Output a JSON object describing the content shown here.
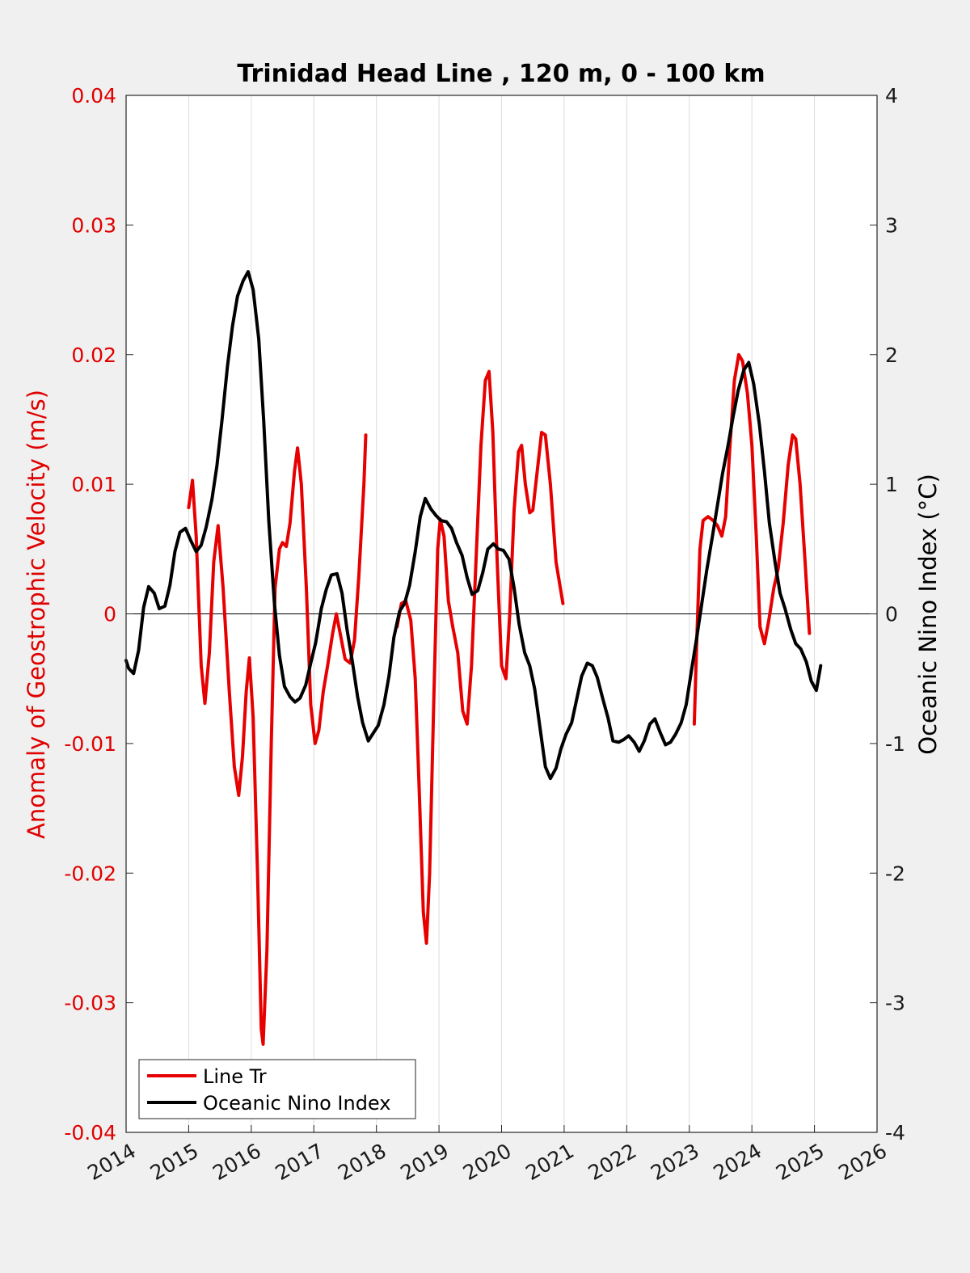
{
  "chart_data": {
    "type": "line",
    "title": "Trinidad Head Line , 120 m, 0 - 100 km",
    "ylabel_left": "Anomaly of Geostrophic Velocity (m/s)",
    "ylabel_right": "Oceanic Nino Index (°C)",
    "x_ticks": [
      "2014",
      "2015",
      "2016",
      "2017",
      "2018",
      "2019",
      "2020",
      "2021",
      "2022",
      "2023",
      "2024",
      "2025",
      "2026"
    ],
    "xlim": [
      2014,
      2026
    ],
    "ylim_left": [
      -0.04,
      0.04
    ],
    "ylim_right": [
      -4,
      4
    ],
    "y_ticks_left": [
      "0.04",
      "0.03",
      "0.02",
      "0.01",
      "0",
      "-0.01",
      "-0.02",
      "-0.03",
      "-0.04"
    ],
    "y_ticks_right": [
      "4",
      "3",
      "2",
      "1",
      "0",
      "-1",
      "-2",
      "-3",
      "-4"
    ],
    "grid": "vertical",
    "legend_position": "bottom-left",
    "colors": {
      "line_tr": "#e60000",
      "oni": "#000000",
      "left_axis": "#e00000"
    },
    "series": [
      {
        "name": "Line Tr",
        "axis": "left",
        "segments": [
          [
            [
              2015.0,
              0.0082
            ],
            [
              2015.06,
              0.0103
            ],
            [
              2015.12,
              0.006
            ],
            [
              2015.2,
              -0.004
            ],
            [
              2015.26,
              -0.0069
            ],
            [
              2015.33,
              -0.003
            ],
            [
              2015.4,
              0.004
            ],
            [
              2015.47,
              0.0068
            ],
            [
              2015.55,
              0.002
            ],
            [
              2015.65,
              -0.006
            ],
            [
              2015.73,
              -0.0118
            ],
            [
              2015.8,
              -0.014
            ],
            [
              2015.86,
              -0.011
            ],
            [
              2015.92,
              -0.006
            ],
            [
              2015.97,
              -0.0034
            ],
            [
              2016.03,
              -0.008
            ],
            [
              2016.1,
              -0.02
            ],
            [
              2016.16,
              -0.032
            ],
            [
              2016.19,
              -0.0332
            ],
            [
              2016.25,
              -0.026
            ],
            [
              2016.32,
              -0.01
            ],
            [
              2016.38,
              0.002
            ],
            [
              2016.45,
              0.005
            ],
            [
              2016.5,
              0.0055
            ],
            [
              2016.56,
              0.0052
            ],
            [
              2016.62,
              0.007
            ],
            [
              2016.69,
              0.011
            ],
            [
              2016.74,
              0.0128
            ],
            [
              2016.8,
              0.01
            ],
            [
              2016.88,
              0.002
            ],
            [
              2016.95,
              -0.007
            ],
            [
              2017.02,
              -0.01
            ],
            [
              2017.08,
              -0.009
            ],
            [
              2017.15,
              -0.006
            ],
            [
              2017.22,
              -0.004
            ],
            [
              2017.3,
              -0.0015
            ],
            [
              2017.36,
              0.0
            ],
            [
              2017.42,
              -0.0015
            ],
            [
              2017.5,
              -0.0035
            ],
            [
              2017.58,
              -0.0038
            ],
            [
              2017.65,
              -0.002
            ],
            [
              2017.72,
              0.003
            ],
            [
              2017.8,
              0.01
            ],
            [
              2017.83,
              0.0138
            ]
          ],
          [
            [
              2018.33,
              -0.001
            ],
            [
              2018.4,
              0.0008
            ],
            [
              2018.47,
              0.001
            ],
            [
              2018.55,
              -0.0005
            ],
            [
              2018.62,
              -0.005
            ],
            [
              2018.68,
              -0.013
            ],
            [
              2018.75,
              -0.023
            ],
            [
              2018.8,
              -0.0254
            ],
            [
              2018.85,
              -0.02
            ],
            [
              2018.92,
              -0.006
            ],
            [
              2018.98,
              0.005
            ],
            [
              2019.02,
              0.0073
            ],
            [
              2019.08,
              0.006
            ],
            [
              2019.15,
              0.001
            ],
            [
              2019.22,
              -0.001
            ],
            [
              2019.3,
              -0.003
            ],
            [
              2019.38,
              -0.0075
            ],
            [
              2019.45,
              -0.0085
            ],
            [
              2019.52,
              -0.004
            ],
            [
              2019.6,
              0.005
            ],
            [
              2019.67,
              0.013
            ],
            [
              2019.74,
              0.018
            ],
            [
              2019.8,
              0.0187
            ],
            [
              2019.86,
              0.014
            ],
            [
              2019.93,
              0.004
            ],
            [
              2020.0,
              -0.004
            ],
            [
              2020.07,
              -0.005
            ],
            [
              2020.13,
              0.0
            ],
            [
              2020.2,
              0.008
            ],
            [
              2020.27,
              0.0125
            ],
            [
              2020.32,
              0.013
            ],
            [
              2020.38,
              0.01
            ],
            [
              2020.45,
              0.0078
            ],
            [
              2020.5,
              0.008
            ],
            [
              2020.57,
              0.011
            ],
            [
              2020.64,
              0.014
            ],
            [
              2020.7,
              0.0138
            ],
            [
              2020.78,
              0.01
            ],
            [
              2020.87,
              0.004
            ],
            [
              2020.98,
              0.0008
            ]
          ],
          [
            [
              2023.08,
              -0.0085
            ],
            [
              2023.12,
              -0.002
            ],
            [
              2023.17,
              0.005
            ],
            [
              2023.22,
              0.0072
            ],
            [
              2023.3,
              0.0075
            ],
            [
              2023.38,
              0.0072
            ],
            [
              2023.45,
              0.0068
            ],
            [
              2023.52,
              0.006
            ],
            [
              2023.58,
              0.0075
            ],
            [
              2023.65,
              0.013
            ],
            [
              2023.72,
              0.018
            ],
            [
              2023.79,
              0.02
            ],
            [
              2023.85,
              0.0195
            ],
            [
              2023.93,
              0.017
            ],
            [
              2024.0,
              0.013
            ],
            [
              2024.07,
              0.006
            ],
            [
              2024.13,
              -0.001
            ],
            [
              2024.2,
              -0.0023
            ],
            [
              2024.27,
              -0.0005
            ],
            [
              2024.35,
              0.002
            ],
            [
              2024.42,
              0.0035
            ],
            [
              2024.5,
              0.007
            ],
            [
              2024.58,
              0.0115
            ],
            [
              2024.65,
              0.0138
            ],
            [
              2024.7,
              0.0135
            ],
            [
              2024.77,
              0.01
            ],
            [
              2024.85,
              0.004
            ],
            [
              2024.92,
              -0.0015
            ]
          ]
        ]
      },
      {
        "name": "Oceanic Nino Index",
        "axis": "right",
        "segments": [
          [
            [
              2014.0,
              -0.36
            ],
            [
              2014.04,
              -0.42
            ],
            [
              2014.12,
              -0.46
            ],
            [
              2014.2,
              -0.28
            ],
            [
              2014.28,
              0.05
            ],
            [
              2014.36,
              0.21
            ],
            [
              2014.45,
              0.16
            ],
            [
              2014.53,
              0.04
            ],
            [
              2014.62,
              0.06
            ],
            [
              2014.7,
              0.22
            ],
            [
              2014.78,
              0.48
            ],
            [
              2014.86,
              0.63
            ],
            [
              2014.95,
              0.66
            ],
            [
              2015.03,
              0.57
            ],
            [
              2015.12,
              0.48
            ],
            [
              2015.2,
              0.53
            ],
            [
              2015.28,
              0.67
            ],
            [
              2015.37,
              0.88
            ],
            [
              2015.45,
              1.14
            ],
            [
              2015.53,
              1.48
            ],
            [
              2015.62,
              1.91
            ],
            [
              2015.7,
              2.22
            ],
            [
              2015.78,
              2.45
            ],
            [
              2015.87,
              2.57
            ],
            [
              2015.95,
              2.64
            ],
            [
              2016.03,
              2.5
            ],
            [
              2016.12,
              2.12
            ],
            [
              2016.2,
              1.48
            ],
            [
              2016.28,
              0.72
            ],
            [
              2016.37,
              0.08
            ],
            [
              2016.45,
              -0.32
            ],
            [
              2016.53,
              -0.56
            ],
            [
              2016.62,
              -0.64
            ],
            [
              2016.7,
              -0.68
            ],
            [
              2016.78,
              -0.65
            ],
            [
              2016.87,
              -0.55
            ],
            [
              2016.95,
              -0.38
            ],
            [
              2017.03,
              -0.22
            ],
            [
              2017.12,
              0.04
            ],
            [
              2017.2,
              0.19
            ],
            [
              2017.28,
              0.3
            ],
            [
              2017.37,
              0.31
            ],
            [
              2017.45,
              0.16
            ],
            [
              2017.53,
              -0.12
            ],
            [
              2017.62,
              -0.38
            ],
            [
              2017.7,
              -0.64
            ],
            [
              2017.78,
              -0.84
            ],
            [
              2017.87,
              -0.98
            ],
            [
              2017.95,
              -0.92
            ],
            [
              2018.03,
              -0.86
            ],
            [
              2018.12,
              -0.7
            ],
            [
              2018.2,
              -0.48
            ],
            [
              2018.28,
              -0.18
            ],
            [
              2018.37,
              0.02
            ],
            [
              2018.45,
              0.08
            ],
            [
              2018.53,
              0.22
            ],
            [
              2018.62,
              0.48
            ],
            [
              2018.7,
              0.75
            ],
            [
              2018.78,
              0.89
            ],
            [
              2018.87,
              0.81
            ],
            [
              2018.95,
              0.76
            ],
            [
              2019.03,
              0.72
            ],
            [
              2019.12,
              0.71
            ],
            [
              2019.2,
              0.66
            ],
            [
              2019.28,
              0.55
            ],
            [
              2019.37,
              0.45
            ],
            [
              2019.45,
              0.28
            ],
            [
              2019.53,
              0.15
            ],
            [
              2019.62,
              0.18
            ],
            [
              2019.7,
              0.32
            ],
            [
              2019.78,
              0.5
            ],
            [
              2019.87,
              0.54
            ],
            [
              2019.95,
              0.5
            ],
            [
              2020.03,
              0.49
            ],
            [
              2020.12,
              0.42
            ],
            [
              2020.2,
              0.2
            ],
            [
              2020.28,
              -0.08
            ],
            [
              2020.37,
              -0.3
            ],
            [
              2020.45,
              -0.4
            ],
            [
              2020.53,
              -0.58
            ],
            [
              2020.62,
              -0.9
            ],
            [
              2020.7,
              -1.18
            ],
            [
              2020.78,
              -1.27
            ],
            [
              2020.87,
              -1.19
            ],
            [
              2020.95,
              -1.04
            ],
            [
              2021.03,
              -0.93
            ],
            [
              2021.12,
              -0.84
            ],
            [
              2021.2,
              -0.66
            ],
            [
              2021.28,
              -0.48
            ],
            [
              2021.37,
              -0.38
            ],
            [
              2021.45,
              -0.4
            ],
            [
              2021.53,
              -0.49
            ],
            [
              2021.62,
              -0.66
            ],
            [
              2021.7,
              -0.8
            ],
            [
              2021.78,
              -0.98
            ],
            [
              2021.87,
              -0.99
            ],
            [
              2021.95,
              -0.97
            ],
            [
              2022.03,
              -0.94
            ],
            [
              2022.12,
              -0.99
            ],
            [
              2022.2,
              -1.06
            ],
            [
              2022.28,
              -0.98
            ],
            [
              2022.37,
              -0.85
            ],
            [
              2022.45,
              -0.81
            ],
            [
              2022.53,
              -0.91
            ],
            [
              2022.62,
              -1.01
            ],
            [
              2022.7,
              -0.99
            ],
            [
              2022.78,
              -0.93
            ],
            [
              2022.87,
              -0.84
            ],
            [
              2022.95,
              -0.7
            ],
            [
              2023.03,
              -0.45
            ],
            [
              2023.12,
              -0.18
            ],
            [
              2023.2,
              0.08
            ],
            [
              2023.28,
              0.34
            ],
            [
              2023.37,
              0.6
            ],
            [
              2023.45,
              0.84
            ],
            [
              2023.53,
              1.08
            ],
            [
              2023.62,
              1.3
            ],
            [
              2023.7,
              1.52
            ],
            [
              2023.78,
              1.72
            ],
            [
              2023.87,
              1.88
            ],
            [
              2023.95,
              1.94
            ],
            [
              2024.03,
              1.77
            ],
            [
              2024.12,
              1.46
            ],
            [
              2024.2,
              1.1
            ],
            [
              2024.28,
              0.7
            ],
            [
              2024.37,
              0.4
            ],
            [
              2024.45,
              0.16
            ],
            [
              2024.53,
              0.04
            ],
            [
              2024.62,
              -0.12
            ],
            [
              2024.7,
              -0.23
            ],
            [
              2024.78,
              -0.27
            ],
            [
              2024.87,
              -0.37
            ],
            [
              2024.95,
              -0.52
            ],
            [
              2025.03,
              -0.59
            ],
            [
              2025.1,
              -0.4
            ]
          ]
        ]
      }
    ],
    "legend": [
      "Line Tr",
      "Oceanic Nino Index"
    ]
  }
}
